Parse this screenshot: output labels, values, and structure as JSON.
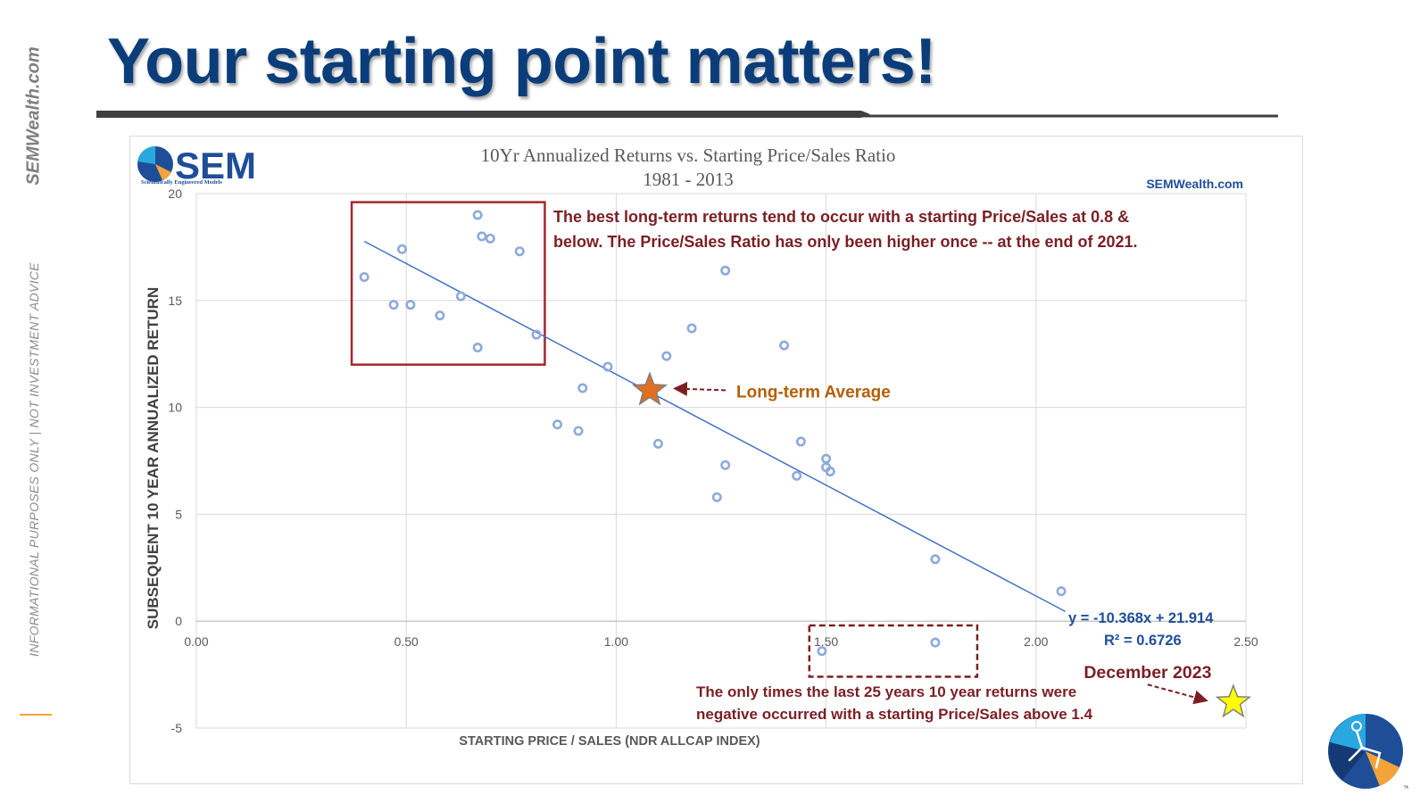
{
  "slide": {
    "title": "Your starting point matters!",
    "side_brand": "SEMWealth.com",
    "side_disclaimer": "INFORMATIONAL PURPOSES ONLY | NOT INVESTMENT ADVICE",
    "logo_text": "SEM",
    "logo_tagline": "Scientifically Engineered Models",
    "trademark": "™",
    "colors": {
      "title": "#0b3d7a",
      "points": "#8eaadb",
      "trendline": "#4472c4",
      "box_red": "#a5272d",
      "box_dashed": "#7b1f24",
      "annotation_dark_red": "#7b1f24",
      "annotation_orange": "#b45f06",
      "equation": "#1f4e99",
      "avg_star": "#e07020",
      "dec_star": "#ffff00"
    }
  },
  "chart_data": {
    "type": "scatter",
    "title": "10Yr Annualized Returns vs. Starting Price/Sales Ratio",
    "subtitle": "1981  - 2013",
    "watermark": "SEMWealth.com",
    "xlabel": "STARTING PRICE / SALES (NDR ALLCAP INDEX)",
    "ylabel": "SUBSEQUENT 10 YEAR ANNUALIZED RETURN",
    "xlim": [
      0,
      2.5
    ],
    "ylim": [
      -5,
      20
    ],
    "x_ticks": [
      0,
      0.5,
      1.0,
      1.5,
      2.0,
      2.5
    ],
    "x_tick_labels": [
      "0.00",
      "0.50",
      "1.00",
      "1.50",
      "2.00",
      "2.50"
    ],
    "y_ticks": [
      -5,
      0,
      5,
      10,
      15,
      20
    ],
    "y_tick_labels": [
      "-5",
      "0",
      "5",
      "10",
      "15",
      "20"
    ],
    "grid": true,
    "points": [
      {
        "x": 0.4,
        "y": 16.1
      },
      {
        "x": 0.47,
        "y": 14.8
      },
      {
        "x": 0.49,
        "y": 17.4
      },
      {
        "x": 0.51,
        "y": 14.8
      },
      {
        "x": 0.58,
        "y": 14.3
      },
      {
        "x": 0.63,
        "y": 15.2
      },
      {
        "x": 0.67,
        "y": 19.0
      },
      {
        "x": 0.68,
        "y": 18.0
      },
      {
        "x": 0.7,
        "y": 17.9
      },
      {
        "x": 0.67,
        "y": 12.8
      },
      {
        "x": 0.77,
        "y": 17.3
      },
      {
        "x": 0.81,
        "y": 13.4
      },
      {
        "x": 0.86,
        "y": 9.2
      },
      {
        "x": 0.91,
        "y": 8.9
      },
      {
        "x": 0.92,
        "y": 10.9
      },
      {
        "x": 0.98,
        "y": 11.9
      },
      {
        "x": 1.1,
        "y": 8.3
      },
      {
        "x": 1.12,
        "y": 12.4
      },
      {
        "x": 1.18,
        "y": 13.7
      },
      {
        "x": 1.24,
        "y": 5.8
      },
      {
        "x": 1.26,
        "y": 16.4
      },
      {
        "x": 1.26,
        "y": 7.3
      },
      {
        "x": 1.4,
        "y": 12.9
      },
      {
        "x": 1.44,
        "y": 8.4
      },
      {
        "x": 1.43,
        "y": 6.8
      },
      {
        "x": 1.5,
        "y": 7.6
      },
      {
        "x": 1.5,
        "y": 7.2
      },
      {
        "x": 1.51,
        "y": 7.0
      },
      {
        "x": 1.49,
        "y": -1.4
      },
      {
        "x": 1.76,
        "y": 2.9
      },
      {
        "x": 1.76,
        "y": -1.0
      },
      {
        "x": 2.06,
        "y": 1.4
      }
    ],
    "trendline": {
      "slope": -10.368,
      "intercept": 21.914,
      "x_range": [
        0.4,
        2.07
      ],
      "equation_label": "y = -10.368x + 21.914",
      "r2_label": "R² = 0.6726"
    },
    "highlights": [
      {
        "x": 1.08,
        "y": 10.8,
        "label": "Long-term Average"
      },
      {
        "x": 2.47,
        "y": -3.8,
        "label": "December 2023"
      }
    ],
    "annotations": {
      "box_note": [
        "The best long-term returns tend to occur with a starting Price/Sales at 0.8 &",
        "below. The Price/Sales Ratio has only been higher once   -- at the end of 2021."
      ],
      "negative_note": [
        "The only times the last 25 years 10 year returns were",
        "negative occurred with a starting Price/Sales above 1.4"
      ]
    },
    "regions": {
      "low_ps_box": {
        "x": [
          0.37,
          0.83
        ],
        "y": [
          12.0,
          19.6
        ]
      },
      "negative_box": {
        "x": [
          1.46,
          1.86
        ],
        "y": [
          -2.6,
          -0.2
        ]
      }
    }
  }
}
